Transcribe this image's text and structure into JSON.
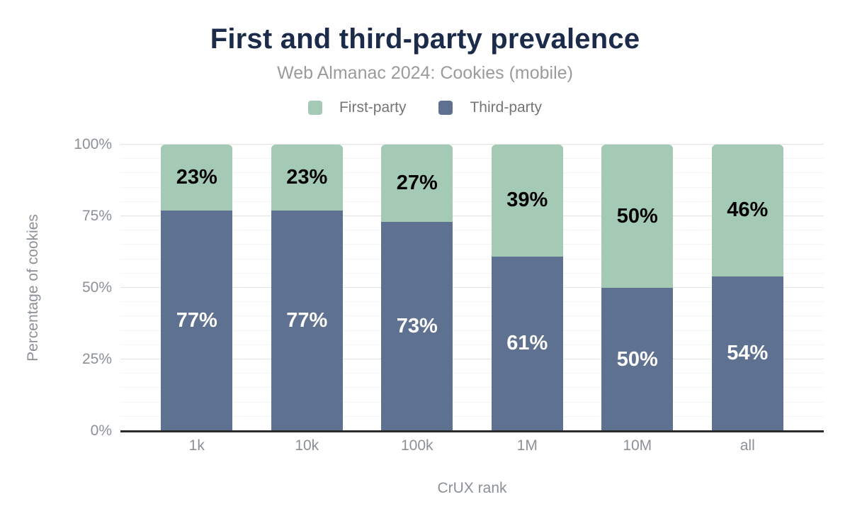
{
  "chart_data": {
    "type": "bar",
    "stacked": true,
    "title": "First and third-party prevalence",
    "subtitle": "Web Almanac 2024: Cookies (mobile)",
    "xlabel": "CrUX rank",
    "ylabel": "Percentage of cookies",
    "categories": [
      "1k",
      "10k",
      "100k",
      "1M",
      "10M",
      "all"
    ],
    "series": [
      {
        "name": "First-party",
        "color": "#a4c9b5",
        "label_text_color": "#000000",
        "values": [
          23,
          23,
          27,
          39,
          50,
          46
        ]
      },
      {
        "name": "Third-party",
        "color": "#5e7190",
        "label_text_color": "#ffffff",
        "values": [
          77,
          77,
          73,
          61,
          50,
          54
        ]
      }
    ],
    "ylim": [
      0,
      100
    ],
    "yticks": [
      0,
      25,
      50,
      75,
      100
    ],
    "ytick_labels": [
      "0%",
      "25%",
      "50%",
      "75%",
      "100%"
    ],
    "grid_step": 5,
    "major_step": 25,
    "grid_on": true,
    "legend_position": "top",
    "value_suffix": "%"
  },
  "colors": {
    "title": "#1b2b49",
    "subtitle": "#9b9b9b",
    "legend_text": "#757575",
    "axis_text": "#8b9196",
    "axis_line": "#2b2b2b",
    "gridline_minor": "#f5f5f5",
    "gridline_major": "#e4e4e4",
    "first_party": "#a4c9b5",
    "third_party": "#5e7190"
  }
}
